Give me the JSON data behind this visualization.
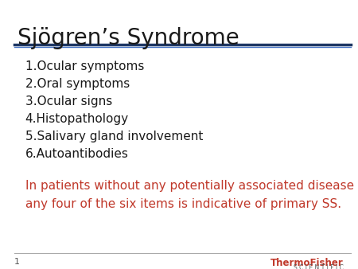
{
  "title": "Sjögren’s Syndrome",
  "title_color": "#1a1a1a",
  "title_fontsize": 20,
  "line1_color": "#1f3864",
  "line2_color": "#4472c4",
  "list_items": [
    "1.Ocular symptoms",
    "2.Oral symptoms",
    "3.Ocular signs",
    "4.Histopathology",
    "5.Salivary gland involvement",
    "6.Autoantibodies"
  ],
  "list_color": "#1a1a1a",
  "list_fontsize": 11,
  "note_line1": "In patients without any potentially associated disease the presence of",
  "note_line2": "any four of the six items is indicative of primary SS.",
  "note_color": "#c0392b",
  "note_fontsize": 11,
  "footer_num": "1",
  "footer_brand_line1": "ThermoFisher",
  "footer_brand_line2": "S C I E N T I F I C",
  "footer_color": "#c0392b",
  "footer_sci_color": "#555555",
  "bg_color": "#ffffff"
}
